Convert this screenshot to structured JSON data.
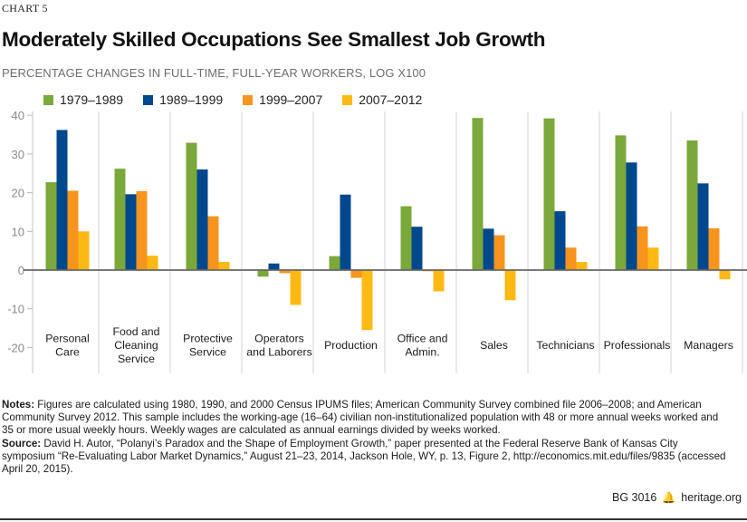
{
  "kicker": "CHART 5",
  "title": "Moderately Skilled Occupations See Smallest Job Growth",
  "subtitle": "PERCENTAGE CHANGES IN FULL-TIME, FULL-YEAR WORKERS, LOG  X100",
  "chart_data": {
    "type": "bar",
    "title": "Moderately Skilled Occupations See Smallest Job Growth",
    "subtitle": "PERCENTAGE CHANGES IN FULL-TIME, FULL-YEAR WORKERS, LOG  X100",
    "xlabel": "",
    "ylabel": "",
    "ylim": [
      -25,
      40
    ],
    "yticks": [
      40,
      30,
      20,
      10,
      0,
      -10,
      -20
    ],
    "grid": false,
    "legend_position": "top",
    "categories": [
      [
        "Personal",
        "Care"
      ],
      [
        "Food and",
        "Cleaning",
        "Service"
      ],
      [
        "Protective",
        "Service"
      ],
      [
        "Operators",
        "and Laborers"
      ],
      [
        "Production"
      ],
      [
        "Office and",
        "Admin."
      ],
      [
        "Sales"
      ],
      [
        "Technicians"
      ],
      [
        "Professionals"
      ],
      [
        "Managers"
      ]
    ],
    "series": [
      {
        "name": "1979–1989",
        "color": "#7aa83a",
        "values": [
          22.7,
          26.2,
          32.9,
          -1.7,
          3.6,
          16.5,
          39.3,
          39.2,
          34.8,
          33.5
        ]
      },
      {
        "name": "1989–1999",
        "color": "#00488d",
        "values": [
          36.2,
          19.6,
          26.0,
          1.7,
          19.5,
          11.2,
          10.7,
          15.2,
          27.8,
          22.4
        ]
      },
      {
        "name": "1999–2007",
        "color": "#f7941d",
        "values": [
          20.5,
          20.4,
          13.9,
          -0.8,
          -2.0,
          -0.3,
          9.0,
          5.8,
          11.3,
          10.8
        ]
      },
      {
        "name": "2007–2012",
        "color": "#fdb913",
        "values": [
          10.0,
          3.7,
          2.1,
          -9.0,
          -15.5,
          -5.5,
          -7.8,
          2.1,
          5.8,
          -2.4
        ]
      }
    ]
  },
  "notes": {
    "notes_label": "Notes:",
    "notes_text": " Figures are calculated using 1980, 1990, and 2000 Census IPUMS files; American Community Survey combined file 2006–2008; and American Community Survey 2012. This sample includes the working-age (16–64) civilian non-institutionalized population with 48 or more annual weeks worked and 35 or more usual weekly hours. Weekly wages are calculated as annual earnings divided by weeks worked.",
    "source_label": "Source:",
    "source_text": " David H. Autor, “Polanyi’s Paradox and the Shape of Employment Growth,” paper presented at the Federal Reserve Bank of Kansas City symposium “Re-Evaluating Labor Market Dynamics,” August 21–23, 2014, Jackson Hole, WY, p. 13, Figure 2, http://economics.mit.edu/files/9835 (accessed April 20, 2015)."
  },
  "footer": {
    "doc_id": "BG 3016",
    "icon": "liberty-bell-icon",
    "site": "heritage.org"
  }
}
